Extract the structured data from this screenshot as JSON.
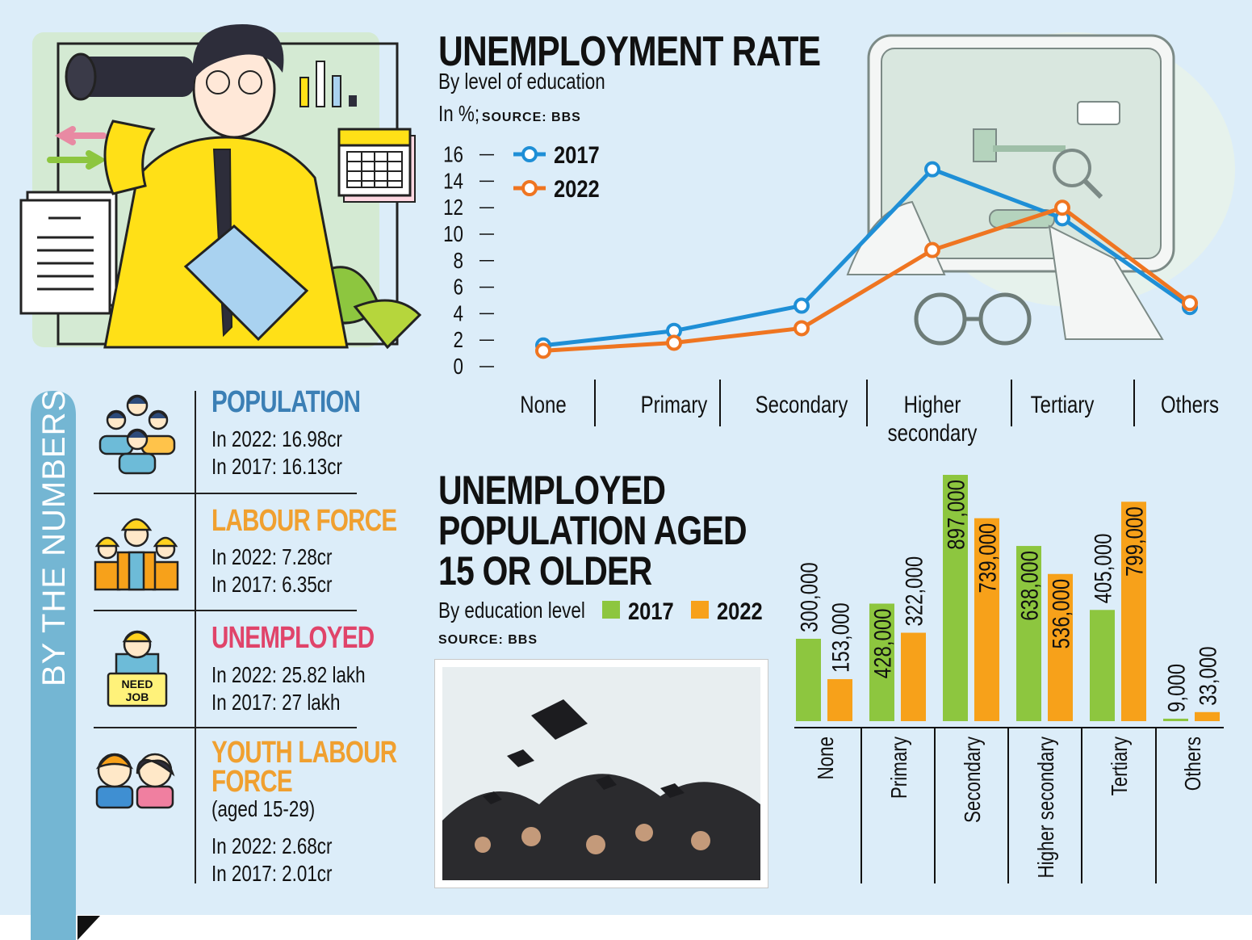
{
  "colors": {
    "c2017_line": "#1f8fd6",
    "c2022_line": "#ef7521",
    "c2017_bar": "#8dc63f",
    "c2022_bar": "#f7a11a",
    "population": "#3b7fb5",
    "labour": "#f0a030",
    "unemployed": "#e0446a",
    "youth": "#f0a030",
    "sidebar": "#74b6d3"
  },
  "sidebar": {
    "label": "BY THE NUMBERS"
  },
  "stats": [
    {
      "title": "POPULATION",
      "lines": [
        "In 2022: 16.98cr",
        "In 2017: 16.13cr"
      ],
      "icon": "population-icon"
    },
    {
      "title": "LABOUR FORCE",
      "lines": [
        "In 2022: 7.28cr",
        "In 2017: 6.35cr"
      ],
      "icon": "workers-icon"
    },
    {
      "title": "UNEMPLOYED",
      "lines": [
        "In 2022: 25.82 lakh",
        "In 2017: 27 lakh"
      ],
      "icon": "need-job-icon",
      "sign": "NEED JOB"
    },
    {
      "title_line1": "YOUTH LABOUR",
      "title_line2": "FORCE",
      "note": "(aged 15-29)",
      "lines": [
        "In 2022: 2.68cr",
        "In 2017: 2.01cr"
      ],
      "icon": "youth-icon"
    }
  ],
  "rate_chart": {
    "title": "UNEMPLOYMENT RATE",
    "subtitle": "By level of education",
    "unit": "In %;",
    "source": "SOURCE: BBS"
  },
  "bar_chart": {
    "title_line1": "UNEMPLOYED",
    "title_line2": "POPULATION AGED",
    "title_line3": "15 OR OLDER",
    "subtitle": "By education level",
    "source": "SOURCE: BBS"
  },
  "chart_data": [
    {
      "type": "line",
      "title": "UNEMPLOYMENT RATE",
      "subtitle": "By level of education",
      "ylabel": "In %",
      "categories": [
        "None",
        "Primary",
        "Secondary",
        "Higher secondary",
        "Tertiary",
        "Others"
      ],
      "yticks": [
        0,
        2,
        4,
        6,
        8,
        10,
        12,
        14,
        16
      ],
      "ylim": [
        0,
        16
      ],
      "legend": "top-left",
      "series": [
        {
          "name": "2017",
          "values": [
            1.6,
            2.7,
            4.6,
            14.9,
            11.2,
            4.5
          ]
        },
        {
          "name": "2022",
          "values": [
            1.2,
            1.8,
            2.9,
            8.8,
            12.0,
            4.8
          ]
        }
      ]
    },
    {
      "type": "bar",
      "title": "UNEMPLOYED POPULATION AGED 15 OR OLDER",
      "subtitle": "By education level",
      "categories": [
        "None",
        "Primary",
        "Secondary",
        "Higher secondary",
        "Tertiary",
        "Others"
      ],
      "legend": "top",
      "series": [
        {
          "name": "2017",
          "values": [
            300000,
            428000,
            897000,
            638000,
            405000,
            9000
          ],
          "labels": [
            "300,000",
            "428,000",
            "897,000",
            "638,000",
            "405,000",
            "9,000"
          ]
        },
        {
          "name": "2022",
          "values": [
            153000,
            322000,
            739000,
            536000,
            799000,
            33000
          ],
          "labels": [
            "153,000",
            "322,000",
            "739,000",
            "536,000",
            "799,000",
            "33,000"
          ]
        }
      ]
    }
  ]
}
